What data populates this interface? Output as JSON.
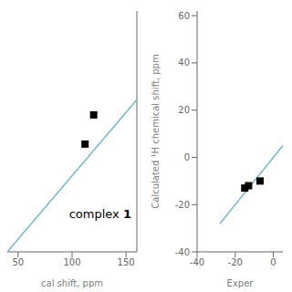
{
  "chart_data": [
    {
      "type": "scatter",
      "xlabel": "cal shift, ppm",
      "annotation": "complex 1",
      "xlim": [
        40,
        160
      ],
      "ylim": [
        40,
        230
      ],
      "xticks": [
        50,
        100,
        150
      ],
      "tick_labels": "x",
      "series": [
        {
          "type": "line",
          "color": "#7ab8cc",
          "x": [
            40,
            160
          ],
          "values": [
            40,
            160
          ]
        },
        {
          "type": "scatter",
          "color": "#000000",
          "marker": "square",
          "x": [
            120,
            112
          ],
          "values": [
            148,
            125
          ]
        }
      ]
    },
    {
      "type": "scatter",
      "xlabel": "Exper",
      "ylabel": "Calculated ¹H chemical shift, ppm",
      "xlim": [
        -40,
        5
      ],
      "ylim": [
        -40,
        62
      ],
      "xticks": [
        -40,
        -20,
        0
      ],
      "yticks": [
        -40,
        -20,
        0,
        20,
        40,
        60
      ],
      "series": [
        {
          "type": "line",
          "color": "#7ab8cc",
          "x": [
            -28,
            5
          ],
          "values": [
            -28,
            5
          ]
        },
        {
          "type": "scatter",
          "color": "#000000",
          "marker": "square",
          "x": [
            -15,
            -13,
            -7
          ],
          "values": [
            -13,
            -12,
            -10
          ]
        }
      ]
    }
  ]
}
